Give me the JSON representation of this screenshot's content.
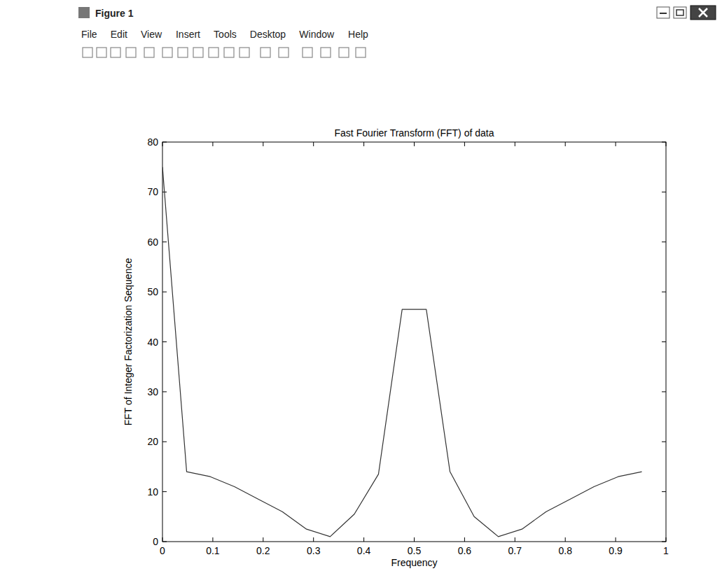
{
  "window": {
    "title": "Figure 1",
    "menu": [
      "File",
      "Edit",
      "View",
      "Insert",
      "Tools",
      "Desktop",
      "Window",
      "Help"
    ]
  },
  "chart_data": {
    "type": "line",
    "title": "Fast Fourier Transform (FFT) of data",
    "x_label": "Frequency",
    "y_label": "FFT of Integer Factorization Sequence",
    "x": [
      0,
      0.048,
      0.095,
      0.143,
      0.19,
      0.238,
      0.286,
      0.333,
      0.381,
      0.429,
      0.476,
      0.524,
      0.571,
      0.619,
      0.667,
      0.714,
      0.762,
      0.81,
      0.857,
      0.905,
      0.952
    ],
    "values": [
      75,
      14,
      13,
      11,
      8.5,
      6,
      2.5,
      1,
      5.5,
      13.5,
      46.5,
      46.5,
      14,
      5,
      1,
      2.5,
      6,
      8.5,
      11,
      13,
      14
    ],
    "color": "#333333",
    "xlim": [
      0,
      1
    ],
    "ylim": [
      0,
      80
    ],
    "xticks": [
      0,
      0.1,
      0.2,
      0.3,
      0.4,
      0.5,
      0.6,
      0.7,
      0.8,
      0.9,
      1
    ],
    "yticks": [
      0,
      10,
      20,
      30,
      40,
      50,
      60,
      70,
      80
    ],
    "grid": false
  }
}
